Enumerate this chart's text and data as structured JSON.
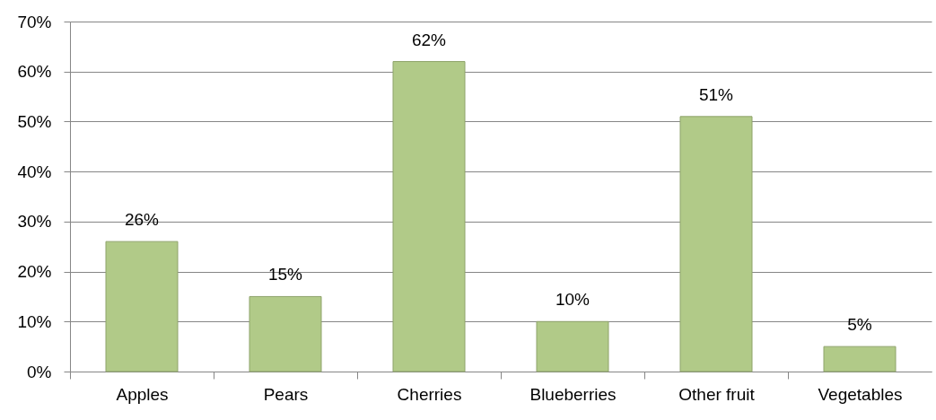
{
  "chart_data": {
    "type": "bar",
    "categories": [
      "Apples",
      "Pears",
      "Cherries",
      "Blueberries",
      "Other fruit",
      "Vegetables"
    ],
    "values": [
      26,
      15,
      62,
      10,
      51,
      5
    ],
    "value_labels": [
      "26%",
      "15%",
      "62%",
      "10%",
      "51%",
      "5%"
    ],
    "color": "#b1ca88",
    "ylim": [
      0,
      70
    ],
    "yticks": [
      {
        "value": 0,
        "label": "0%"
      },
      {
        "value": 10,
        "label": "10%"
      },
      {
        "value": 20,
        "label": "20%"
      },
      {
        "value": 30,
        "label": "30%"
      },
      {
        "value": 40,
        "label": "40%"
      },
      {
        "value": 50,
        "label": "50%"
      },
      {
        "value": 60,
        "label": "60%"
      },
      {
        "value": 70,
        "label": "70%"
      }
    ],
    "grid": "y"
  }
}
